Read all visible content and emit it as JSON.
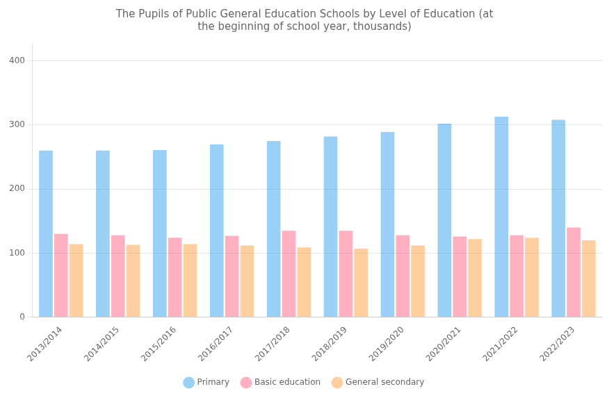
{
  "chart_data": {
    "type": "bar",
    "title": "The Pupils of Public General Education Schools by Level of Education (at\nthe beginning of school year, thousands)",
    "categories": [
      "2013/2014",
      "2014/2015",
      "2015/2016",
      "2016/2017",
      "2017/2018",
      "2018/2019",
      "2019/2020",
      "2020/2021",
      "2021/2022",
      "2022/2023"
    ],
    "series": [
      {
        "name": "Primary",
        "values": [
          260,
          260,
          261,
          270,
          275,
          282,
          289,
          302,
          313,
          308
        ]
      },
      {
        "name": "Basic education",
        "values": [
          130,
          128,
          124,
          127,
          135,
          135,
          128,
          126,
          128,
          140
        ]
      },
      {
        "name": "General secondary",
        "values": [
          114,
          113,
          114,
          112,
          109,
          107,
          112,
          122,
          124,
          120
        ]
      }
    ],
    "ylim": [
      0,
      430
    ],
    "yticks": [
      0,
      100,
      200,
      300,
      400
    ],
    "grid": true,
    "legend": "bottom"
  }
}
